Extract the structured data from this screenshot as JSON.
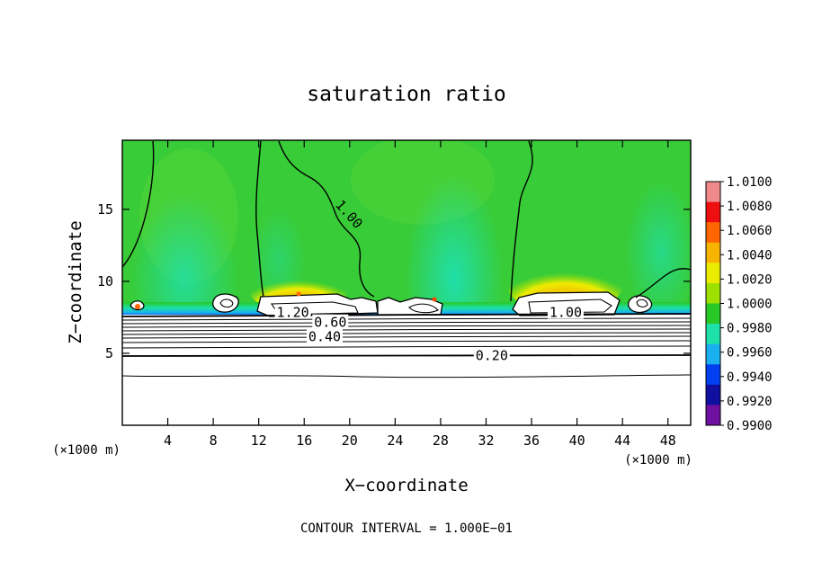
{
  "chart_data": {
    "type": "heatmap",
    "title": "saturation ratio",
    "xlabel": "X−coordinate",
    "ylabel": "Z−coordinate",
    "x_unit": "(×1000 m)",
    "y_unit": "(×1000 m)",
    "xlim": [
      0,
      50
    ],
    "ylim": [
      0,
      19.8
    ],
    "x_ticks": [
      4,
      8,
      12,
      16,
      20,
      24,
      28,
      32,
      36,
      40,
      44,
      48
    ],
    "y_ticks": [
      5,
      10,
      15
    ],
    "colorbar": {
      "range": [
        0.99,
        1.01
      ],
      "labels": [
        "1.0100",
        "1.0080",
        "1.0060",
        "1.0040",
        "1.0020",
        "1.0000",
        "0.9980",
        "0.9960",
        "0.9940",
        "0.9920",
        "0.9900"
      ],
      "colors": [
        "#f08a8a",
        "#ee1010",
        "#ff6600",
        "#f6b400",
        "#ecec00",
        "#9ee000",
        "#28c828",
        "#1fe0a8",
        "#1ab0f0",
        "#0040f0",
        "#1010a0",
        "#7010a0"
      ]
    },
    "contour_labels": [
      {
        "text": "1.00",
        "x": 20.0,
        "z": 14.7,
        "rotate": 48
      },
      {
        "text": "1.20",
        "x": 15.0,
        "z": 7.9,
        "rotate": 0
      },
      {
        "text": "0.60",
        "x": 18.3,
        "z": 7.2,
        "rotate": 0
      },
      {
        "text": "0.40",
        "x": 17.8,
        "z": 6.2,
        "rotate": 0
      },
      {
        "text": "0.20",
        "x": 32.5,
        "z": 4.9,
        "rotate": 0
      },
      {
        "text": "1.00",
        "x": 39.0,
        "z": 7.9,
        "rotate": 0
      }
    ],
    "footnote": "CONTOUR INTERVAL = 1.000E−01"
  }
}
